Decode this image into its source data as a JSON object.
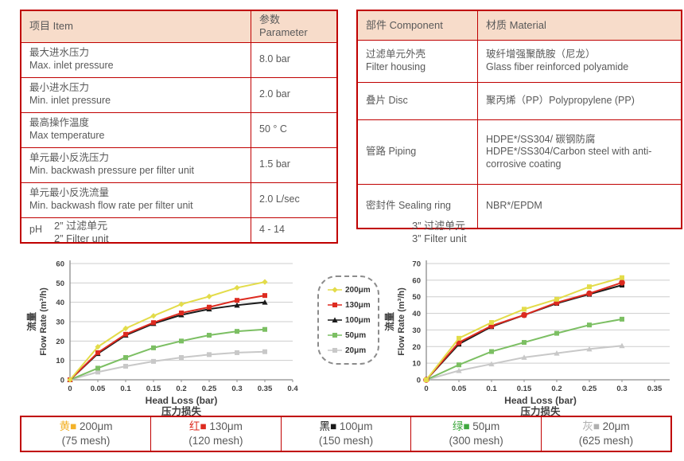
{
  "colors": {
    "table_border": "#c00000",
    "table_header_bg": "#f7dcca",
    "body_text": "#595959"
  },
  "spec_table": {
    "col_item": "项目 Item",
    "col_param": "参数 Parameter",
    "rows": [
      {
        "cn": "最大进水压力",
        "en": "Max. inlet pressure",
        "value": "8.0 bar"
      },
      {
        "cn": "最小进水压力",
        "en": "Min. inlet pressure",
        "value": "2.0 bar"
      },
      {
        "cn": "最高操作温度",
        "en": "Max temperature",
        "value": "50 ° C"
      },
      {
        "cn": "单元最小反洗压力",
        "en": "Min. backwash pressure per filter unit",
        "value": "1.5 bar"
      },
      {
        "cn": "单元最小反洗流量",
        "en": "Min. backwash flow rate per filter unit",
        "value": "2.0 L/sec"
      },
      {
        "cn": "pH",
        "en": "",
        "value": "4 - 14"
      }
    ]
  },
  "material_table": {
    "col_component": "部件 Component",
    "col_material": "材质 Material",
    "rows": [
      {
        "component": [
          "过滤单元外壳",
          "Filter housing"
        ],
        "material": [
          "玻纤增强聚酰胺（尼龙）",
          "Glass fiber reinforced polyamide"
        ]
      },
      {
        "component": [
          "叠片 Disc"
        ],
        "material": [
          "聚丙烯（PP）Polypropylene (PP)"
        ]
      },
      {
        "component": [
          "管路 Piping"
        ],
        "material": [
          "HDPE*/SS304/ 碳钢防腐",
          "HDPE*/SS304/Carbon steel with anti-corrosive coating"
        ]
      },
      {
        "component": [
          "密封件 Sealing ring"
        ],
        "material": [
          "NBR*/EPDM"
        ]
      }
    ]
  },
  "chart_data": [
    {
      "type": "line",
      "title_cn": "2”  过滤单元",
      "title_en": "2”  Filter unit",
      "xlabel": "Head Loss (bar)",
      "xlabel_cn": "压力损失",
      "ylabel": "Flow Rate (m³/h)",
      "ylabel_cn": "流量",
      "xlim": [
        0,
        0.4
      ],
      "ylim": [
        0,
        60
      ],
      "xtick_labels": [
        "0",
        "0.05",
        "0.1",
        "0.15",
        "0.2",
        "0.25",
        "0.3",
        "0.35",
        "0.4"
      ],
      "yticks": [
        0,
        10,
        20,
        30,
        40,
        50,
        60
      ],
      "grid": true,
      "x": [
        0,
        0.05,
        0.1,
        0.15,
        0.2,
        0.25,
        0.3,
        0.35
      ],
      "series": [
        {
          "name": "200μm",
          "color": "#e3dc4a",
          "marker": "diamond",
          "values": [
            0,
            17,
            26.5,
            33,
            39,
            43,
            47.5,
            50.5
          ]
        },
        {
          "name": "130μm",
          "color": "#dd2b20",
          "marker": "square",
          "values": [
            0,
            14,
            23.5,
            29.5,
            34.5,
            37.5,
            41,
            43.5
          ]
        },
        {
          "name": "100μm",
          "color": "#1a1a1a",
          "marker": "triangle",
          "values": [
            0,
            13.5,
            23,
            29,
            33.5,
            36.5,
            38.5,
            40
          ]
        },
        {
          "name": "50μm",
          "color": "#7cbf63",
          "marker": "square",
          "values": [
            0,
            6,
            11.5,
            16.5,
            20,
            23,
            25,
            26
          ]
        },
        {
          "name": "20μm",
          "color": "#c8c8c8",
          "marker": "square",
          "values": [
            0,
            4,
            7,
            9.5,
            11.5,
            13,
            14,
            14.5
          ]
        }
      ]
    },
    {
      "type": "line",
      "title_cn": "3”  过滤单元",
      "title_en": "3”  Filter unit",
      "xlabel": "Head Loss (bar)",
      "xlabel_cn": "压力损失",
      "ylabel": "Flow Rate (m³/h)",
      "ylabel_cn": "流量",
      "xlim": [
        0,
        0.35
      ],
      "ylim": [
        0,
        70
      ],
      "xtick_labels": [
        "0",
        "0.05",
        "0.1",
        "0.15",
        "0.2",
        "0.25",
        "0.3",
        "0.35"
      ],
      "yticks": [
        0,
        10,
        20,
        30,
        40,
        50,
        60,
        70
      ],
      "grid": true,
      "x": [
        0,
        0.05,
        0.1,
        0.15,
        0.2,
        0.25,
        0.3
      ],
      "series": [
        {
          "name": "200μm",
          "color": "#e3dc4a",
          "marker": "square",
          "values": [
            0,
            25,
            34.5,
            42.5,
            48.5,
            56,
            61.5
          ]
        },
        {
          "name": "130μm",
          "color": "#dd2b20",
          "marker": "circle",
          "values": [
            0,
            22.5,
            32.5,
            39,
            46.5,
            52,
            58.5
          ]
        },
        {
          "name": "100μm",
          "color": "#1a1a1a",
          "marker": "square",
          "values": [
            0,
            21.5,
            32,
            39,
            46,
            51.5,
            57
          ]
        },
        {
          "name": "50μm",
          "color": "#7cbf63",
          "marker": "square",
          "values": [
            0,
            9,
            17,
            22.5,
            28,
            33,
            36.5
          ]
        },
        {
          "name": "20μm",
          "color": "#c8c8c8",
          "marker": "triangle",
          "values": [
            0,
            5.5,
            9.5,
            13.5,
            16,
            18.5,
            20.5
          ]
        }
      ]
    }
  ],
  "chart_legend": {
    "items": [
      {
        "label": "200μm",
        "color": "#e3dc4a",
        "marker": "diamond"
      },
      {
        "label": "130μm",
        "color": "#dd2b20",
        "marker": "square"
      },
      {
        "label": "100μm",
        "color": "#1a1a1a",
        "marker": "triangle"
      },
      {
        "label": "50μm",
        "color": "#7cbf63",
        "marker": "square"
      },
      {
        "label": "20μm",
        "color": "#c8c8c8",
        "marker": "square"
      }
    ]
  },
  "bottom_legend": {
    "cells": [
      {
        "color_cn": "黄",
        "color": "#f3b229",
        "size": "200μm",
        "mesh": "(75 mesh)"
      },
      {
        "color_cn": "红",
        "color": "#dd2b20",
        "size": "130μm",
        "mesh": "(120 mesh)"
      },
      {
        "color_cn": "黑",
        "color": "#1a1a1a",
        "size": "100μm",
        "mesh": "(150 mesh)"
      },
      {
        "color_cn": "绿",
        "color": "#3fa83f",
        "size": "50μm",
        "mesh": "(300 mesh)"
      },
      {
        "color_cn": "灰",
        "color": "#b0b0b0",
        "size": "20μm",
        "mesh": "(625 mesh)"
      }
    ]
  }
}
